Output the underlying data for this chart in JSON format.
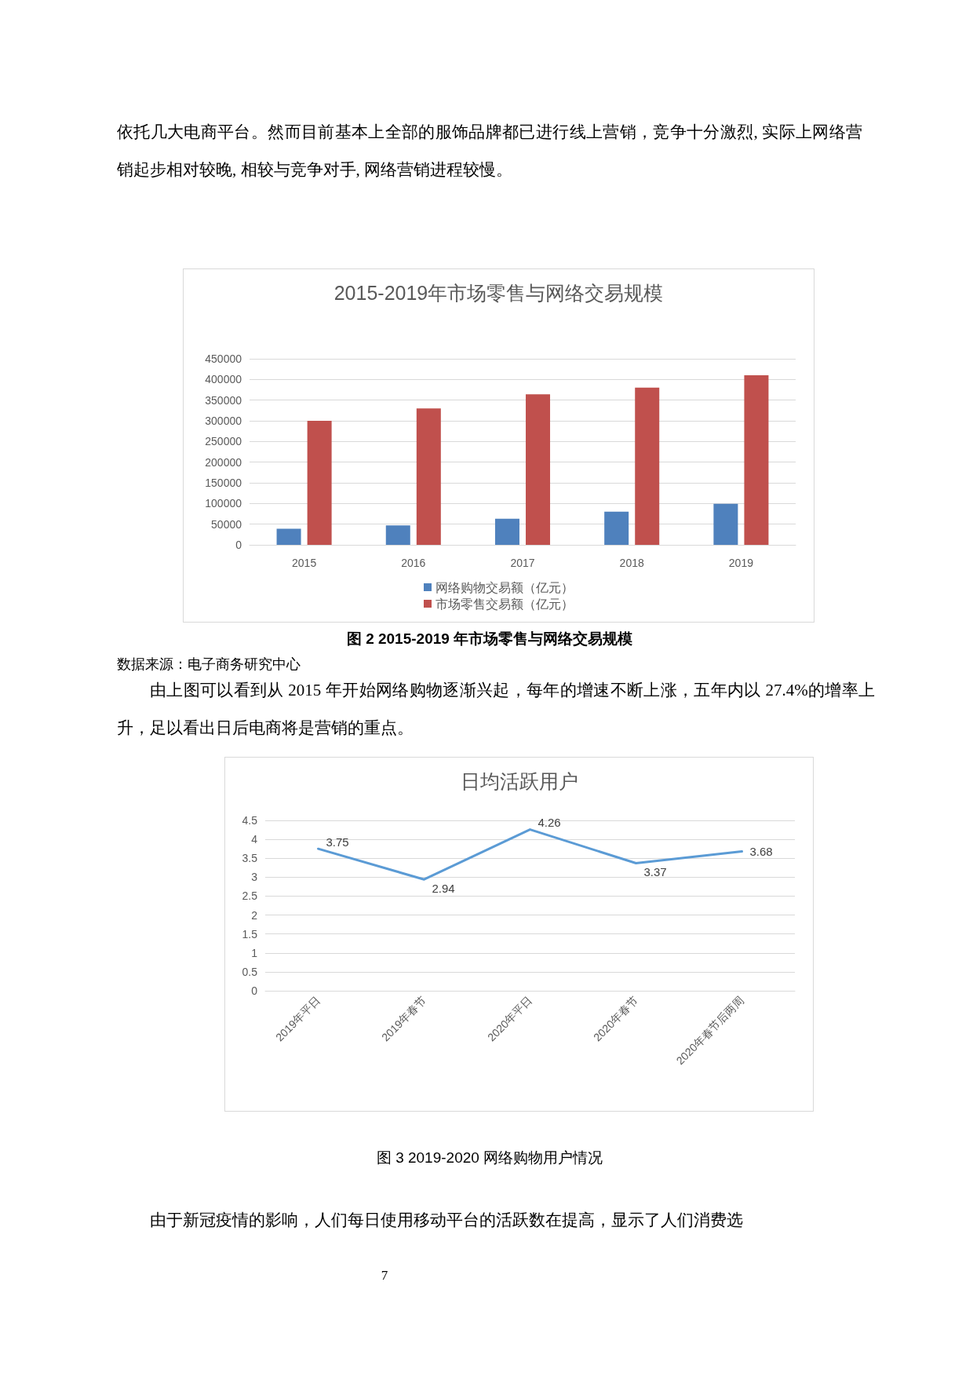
{
  "chart_data": [
    {
      "type": "bar",
      "title": "2015-2019年市场零售与网络交易规模",
      "categories": [
        "2015",
        "2016",
        "2017",
        "2018",
        "2019"
      ],
      "series": [
        {
          "name": "网络购物交易额（亿元）",
          "color": "#4f81bd",
          "values": [
            39000,
            47000,
            63000,
            80000,
            99000
          ]
        },
        {
          "name": "市场零售交易额（亿元）",
          "color": "#c0504d",
          "values": [
            300000,
            330000,
            364000,
            380000,
            410000
          ]
        }
      ],
      "ylim": [
        0,
        450000
      ],
      "yticks": [
        0,
        50000,
        100000,
        150000,
        200000,
        250000,
        300000,
        350000,
        400000,
        450000
      ],
      "grid": "y",
      "legend": "bottom",
      "annotations": [
        "依托几大电商平台。然而目前基本上全部的服饰品牌都已进行线上营销，竞争十分激烈, 实际上网络营销起步相对较晚, 相较与竞争对手, 网络营销进程较慢。",
        "图 2 2015-2019 年市场零售与网络交易规模",
        "数据来源：电子商务研究中心",
        "由上图可以看到从 2015 年开始网络购物逐渐兴起，每年的增速不断上涨，五年内以 27.4%的增率上升，足以看出日后电商将是营销的重点。"
      ]
    },
    {
      "type": "line",
      "title": "日均活跃用户",
      "categories": [
        "2019年平日",
        "2019年春节",
        "2020年平日",
        "2020年春节",
        "2020年春节后两周"
      ],
      "series": [
        {
          "color": "#5b9bd5",
          "values": [
            3.75,
            2.94,
            4.26,
            3.37,
            3.68
          ]
        }
      ],
      "ylim": [
        0,
        4.5
      ],
      "yticks": [
        0,
        0.5,
        1,
        1.5,
        2,
        2.5,
        3,
        3.5,
        4,
        4.5
      ],
      "grid": "y",
      "data_labels": true,
      "marker": "none",
      "line_style": "solid",
      "annotations": [
        "图 3 2019-2020 网络购物用户情况",
        "由于新冠疫情的影响，人们每日使用移动平台的活跃数在提高，显示了人们消费选",
        "7"
      ]
    }
  ]
}
